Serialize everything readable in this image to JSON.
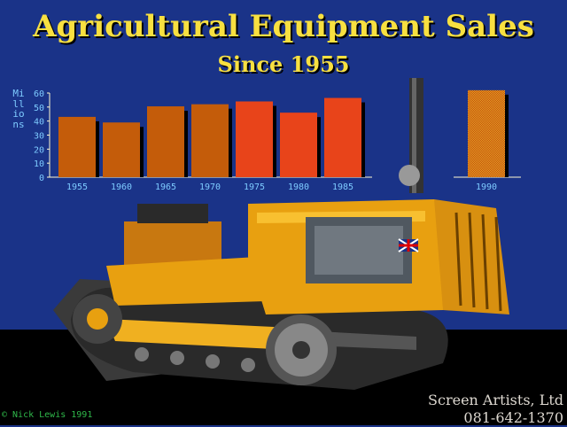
{
  "header": {
    "title": "Agricultural Equipment Sales",
    "subtitle": "Since 1955"
  },
  "chart_data": {
    "type": "bar",
    "title": "Agricultural Equipment Sales",
    "subtitle": "Since 1955",
    "ylabel": "Millions",
    "xlabel": "",
    "ylim": [
      0,
      60
    ],
    "yticks": [
      "0",
      "10",
      "20",
      "30",
      "40",
      "50",
      "60"
    ],
    "categories": [
      "1955",
      "1960",
      "1965",
      "1970",
      "1975",
      "1980",
      "1985",
      "1990"
    ],
    "values": [
      43,
      39,
      50.5,
      52,
      54,
      46,
      56.5,
      62
    ],
    "bar_colors": [
      "#c45c0a",
      "#c45c0a",
      "#c45c0a",
      "#c45c0a",
      "#e8441a",
      "#e8441a",
      "#e8441a",
      "#e0b020"
    ],
    "grid": false
  },
  "footer": {
    "credit": "© Nick Lewis 1991",
    "company": "Screen Artists, Ltd",
    "phone": "081-642-1370"
  },
  "colors": {
    "background": "#1a3388",
    "ground": "#000000",
    "title": "#f8e040",
    "axis_text": "#7ecbff"
  }
}
